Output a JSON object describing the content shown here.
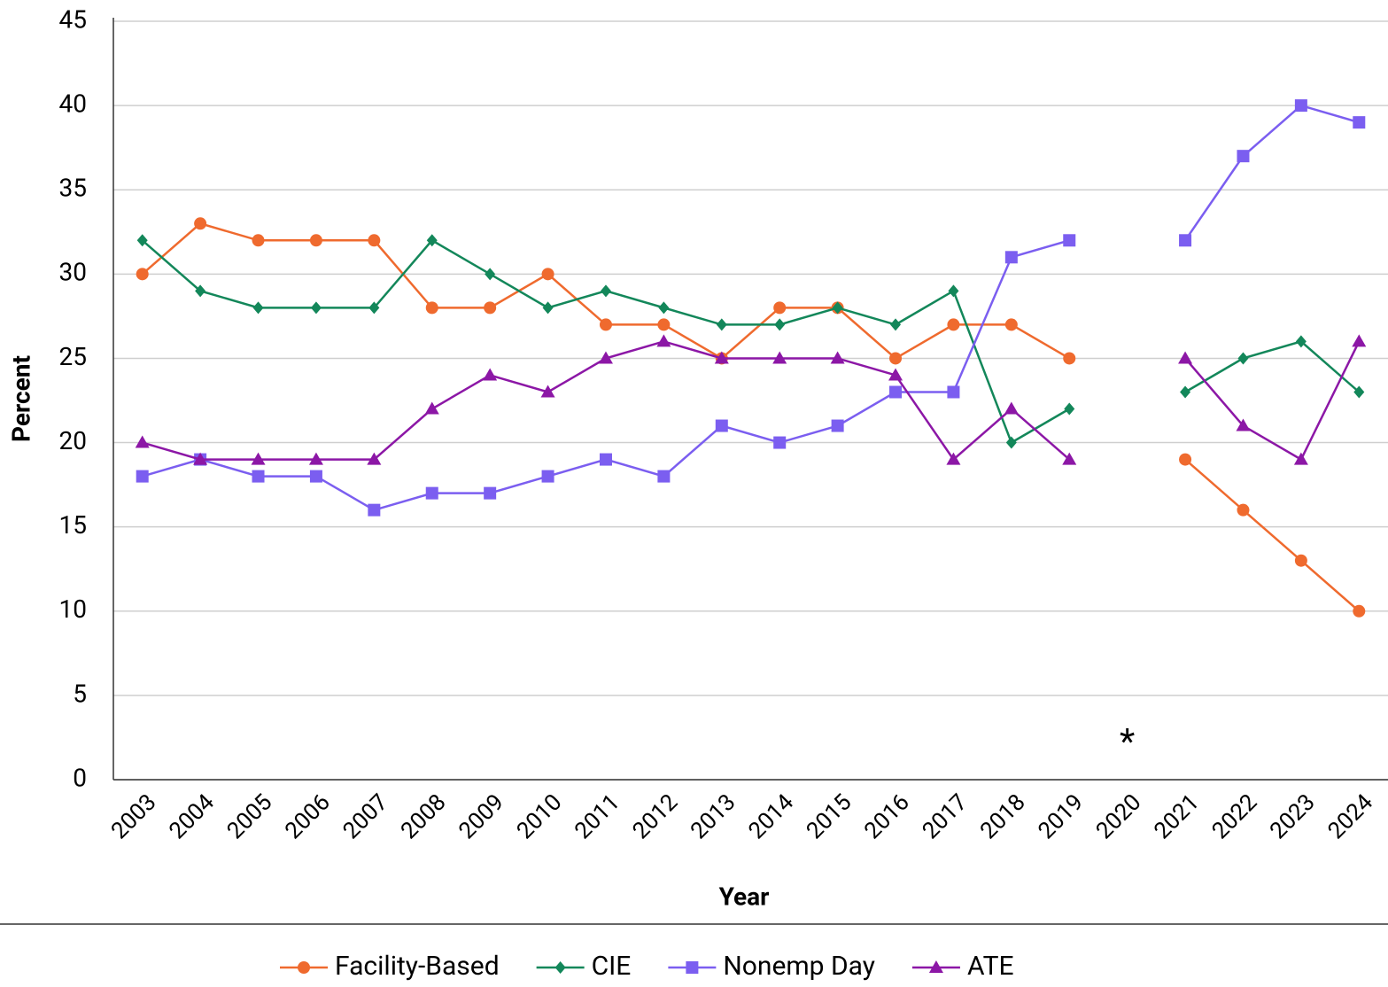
{
  "chart_data": {
    "type": "line",
    "x_label": "Year",
    "y_label": "Percent",
    "annotation": "*",
    "categories": [
      "2003",
      "2004",
      "2005",
      "2006",
      "2007",
      "2008",
      "2009",
      "2010",
      "2011",
      "2012",
      "2013",
      "2014",
      "2015",
      "2016",
      "2017",
      "2018",
      "2019",
      "2020",
      "2021",
      "2022",
      "2023",
      "2024"
    ],
    "series": [
      {
        "name": "Facility-Based",
        "color": "#ef6a2e",
        "marker": "circle",
        "values": [
          30,
          33,
          32,
          32,
          32,
          28,
          28,
          30,
          27,
          27,
          25,
          28,
          28,
          25,
          27,
          27,
          25,
          null,
          19,
          16,
          13,
          10
        ]
      },
      {
        "name": "CIE",
        "color": "#13875a",
        "marker": "diamond",
        "values": [
          32,
          29,
          28,
          28,
          28,
          32,
          30,
          28,
          29,
          28,
          27,
          27,
          28,
          27,
          29,
          20,
          22,
          null,
          23,
          25,
          26,
          23
        ]
      },
      {
        "name": "Nonemp Day",
        "color": "#7b5ef0",
        "marker": "square",
        "values": [
          18,
          19,
          18,
          18,
          16,
          17,
          17,
          18,
          19,
          18,
          21,
          20,
          21,
          23,
          23,
          31,
          32,
          null,
          32,
          37,
          40,
          39
        ]
      },
      {
        "name": "ATE",
        "color": "#8c17a6",
        "marker": "triangle",
        "values": [
          20,
          19,
          19,
          19,
          19,
          22,
          24,
          23,
          25,
          26,
          25,
          25,
          25,
          24,
          19,
          22,
          19,
          null,
          25,
          21,
          19,
          26
        ]
      }
    ],
    "ylim": [
      0,
      45
    ],
    "yticks": [
      0,
      5,
      10,
      15,
      20,
      25,
      30,
      35,
      40,
      45
    ],
    "grid": true,
    "legend": "bottom"
  }
}
